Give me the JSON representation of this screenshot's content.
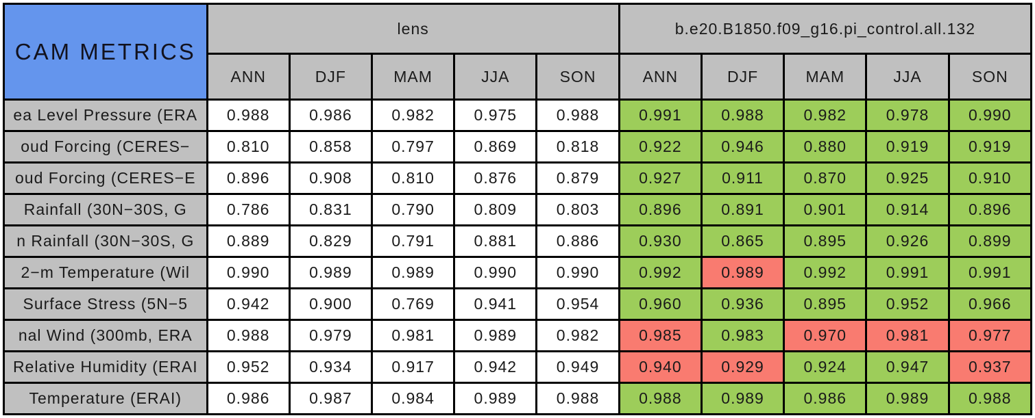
{
  "chart_data": {
    "type": "table",
    "title": "CAM METRICS",
    "column_groups": [
      {
        "label": "lens",
        "columns": [
          "ANN",
          "DJF",
          "MAM",
          "JJA",
          "SON"
        ]
      },
      {
        "label": "b.e20.B1850.f09_g16.pi_control.all.132",
        "columns": [
          "ANN",
          "DJF",
          "MAM",
          "JJA",
          "SON"
        ]
      }
    ],
    "rows": [
      {
        "label": "ea Level Pressure (ERA",
        "lens_values": [
          "0.988",
          "0.986",
          "0.982",
          "0.975",
          "0.988"
        ],
        "case_values": [
          "0.991",
          "0.988",
          "0.982",
          "0.978",
          "0.990"
        ],
        "case_status": [
          "green",
          "green",
          "green",
          "green",
          "green"
        ]
      },
      {
        "label": "oud Forcing (CERES−",
        "lens_values": [
          "0.810",
          "0.858",
          "0.797",
          "0.869",
          "0.818"
        ],
        "case_values": [
          "0.922",
          "0.946",
          "0.880",
          "0.919",
          "0.919"
        ],
        "case_status": [
          "green",
          "green",
          "green",
          "green",
          "green"
        ]
      },
      {
        "label": "oud Forcing (CERES−E",
        "lens_values": [
          "0.896",
          "0.908",
          "0.810",
          "0.876",
          "0.879"
        ],
        "case_values": [
          "0.927",
          "0.911",
          "0.870",
          "0.925",
          "0.910"
        ],
        "case_status": [
          "green",
          "green",
          "green",
          "green",
          "green"
        ]
      },
      {
        "label": "Rainfall (30N−30S, G",
        "lens_values": [
          "0.786",
          "0.831",
          "0.790",
          "0.809",
          "0.803"
        ],
        "case_values": [
          "0.896",
          "0.891",
          "0.901",
          "0.914",
          "0.896"
        ],
        "case_status": [
          "green",
          "green",
          "green",
          "green",
          "green"
        ]
      },
      {
        "label": "n Rainfall (30N−30S, G",
        "lens_values": [
          "0.889",
          "0.829",
          "0.791",
          "0.881",
          "0.886"
        ],
        "case_values": [
          "0.930",
          "0.865",
          "0.895",
          "0.926",
          "0.899"
        ],
        "case_status": [
          "green",
          "green",
          "green",
          "green",
          "green"
        ]
      },
      {
        "label": "2−m Temperature (Wil",
        "lens_values": [
          "0.990",
          "0.989",
          "0.989",
          "0.990",
          "0.990"
        ],
        "case_values": [
          "0.992",
          "0.989",
          "0.992",
          "0.991",
          "0.991"
        ],
        "case_status": [
          "green",
          "red",
          "green",
          "green",
          "green"
        ]
      },
      {
        "label": "Surface Stress (5N−5",
        "lens_values": [
          "0.942",
          "0.900",
          "0.769",
          "0.941",
          "0.954"
        ],
        "case_values": [
          "0.960",
          "0.936",
          "0.895",
          "0.952",
          "0.966"
        ],
        "case_status": [
          "green",
          "green",
          "green",
          "green",
          "green"
        ]
      },
      {
        "label": "nal Wind (300mb, ERA",
        "lens_values": [
          "0.988",
          "0.979",
          "0.981",
          "0.989",
          "0.982"
        ],
        "case_values": [
          "0.985",
          "0.983",
          "0.970",
          "0.981",
          "0.977"
        ],
        "case_status": [
          "red",
          "green",
          "red",
          "red",
          "red"
        ]
      },
      {
        "label": "Relative Humidity (ERAI",
        "lens_values": [
          "0.952",
          "0.934",
          "0.917",
          "0.942",
          "0.949"
        ],
        "case_values": [
          "0.940",
          "0.929",
          "0.924",
          "0.947",
          "0.937"
        ],
        "case_status": [
          "red",
          "red",
          "green",
          "green",
          "red"
        ]
      },
      {
        "label": "Temperature (ERAI)",
        "lens_values": [
          "0.986",
          "0.987",
          "0.984",
          "0.989",
          "0.988"
        ],
        "case_values": [
          "0.988",
          "0.989",
          "0.986",
          "0.989",
          "0.988"
        ],
        "case_status": [
          "green",
          "green",
          "green",
          "green",
          "green"
        ]
      }
    ],
    "colors": {
      "title_bg": "#6495ED",
      "header_bg": "#C0C0C0",
      "label_bg": "#C0C0C0",
      "value_bg": "#FFFFFF",
      "border": "#000000",
      "cell_status": {
        "green": "#9DCD5A",
        "red": "#F97B70"
      }
    }
  }
}
